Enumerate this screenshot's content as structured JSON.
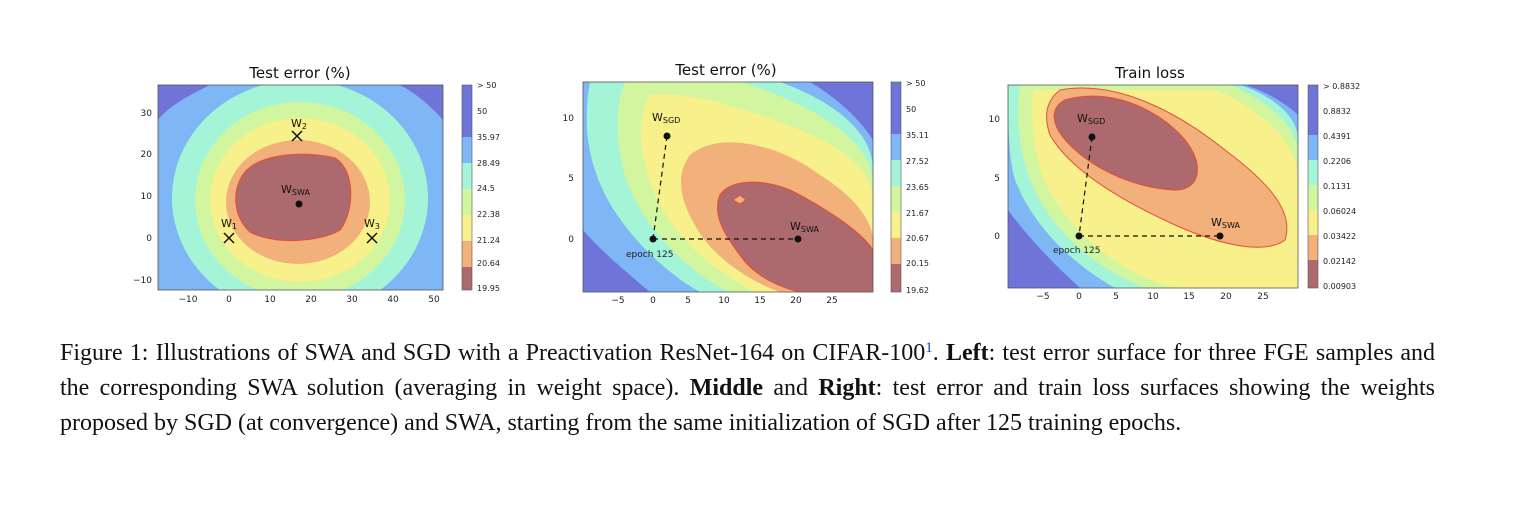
{
  "figure": {
    "panels": [
      {
        "title": "Test error (%)",
        "x_ticks": [
          "−10",
          "0",
          "10",
          "20",
          "30",
          "40",
          "50"
        ],
        "y_ticks": [
          "30",
          "20",
          "10",
          "0",
          "−10"
        ],
        "colorbar": [
          "> 50",
          "50",
          "35.97",
          "28.49",
          "24.5",
          "22.38",
          "21.24",
          "20.64",
          "19.95"
        ],
        "points": [
          {
            "label": "W",
            "sub": "2"
          },
          {
            "label": "W",
            "sub": "SWA"
          },
          {
            "label": "W",
            "sub": "1"
          },
          {
            "label": "W",
            "sub": "3"
          }
        ]
      },
      {
        "title": "Test error (%)",
        "x_ticks": [
          "−5",
          "0",
          "5",
          "10",
          "15",
          "20",
          "25"
        ],
        "y_ticks": [
          "10",
          "5",
          "0"
        ],
        "colorbar": [
          "> 50",
          "50",
          "35.11",
          "27.52",
          "23.65",
          "21.67",
          "20.67",
          "20.15",
          "19.62"
        ],
        "points": [
          {
            "label": "W",
            "sub": "SGD"
          },
          {
            "label": "W",
            "sub": "SWA"
          },
          {
            "label": "epoch 125",
            "sub": ""
          }
        ]
      },
      {
        "title": "Train loss",
        "x_ticks": [
          "−5",
          "0",
          "5",
          "10",
          "15",
          "20",
          "25"
        ],
        "y_ticks": [
          "10",
          "5",
          "0"
        ],
        "colorbar": [
          "> 0.8832",
          "0.8832",
          "0.4391",
          "0.2206",
          "0.1131",
          "0.06024",
          "0.03422",
          "0.02142",
          "0.00903"
        ],
        "points": [
          {
            "label": "W",
            "sub": "SGD"
          },
          {
            "label": "W",
            "sub": "SWA"
          },
          {
            "label": "epoch 125",
            "sub": ""
          }
        ]
      }
    ],
    "colors": [
      "#6f74d9",
      "#7fb6f5",
      "#a4f5d8",
      "#d2f6a0",
      "#f8f08a",
      "#f2b07a",
      "#ad6a6e"
    ]
  },
  "caption": {
    "lead": "Figure 1: Illustrations of SWA and SGD with a Preactivation ResNet-164 on CIFAR-100",
    "footnote_mark": "1",
    "after_mark": ". ",
    "left_label": "Left",
    "left_text": ": test error surface for three FGE samples and the corresponding SWA solution (averaging in weight space). ",
    "middle_label": "Middle",
    "and_text": " and ",
    "right_label": "Right",
    "right_text": ": test error and train loss surfaces showing the weights proposed by SGD (at convergence) and SWA, starting from the same initialization of SGD after 125 training epochs."
  }
}
